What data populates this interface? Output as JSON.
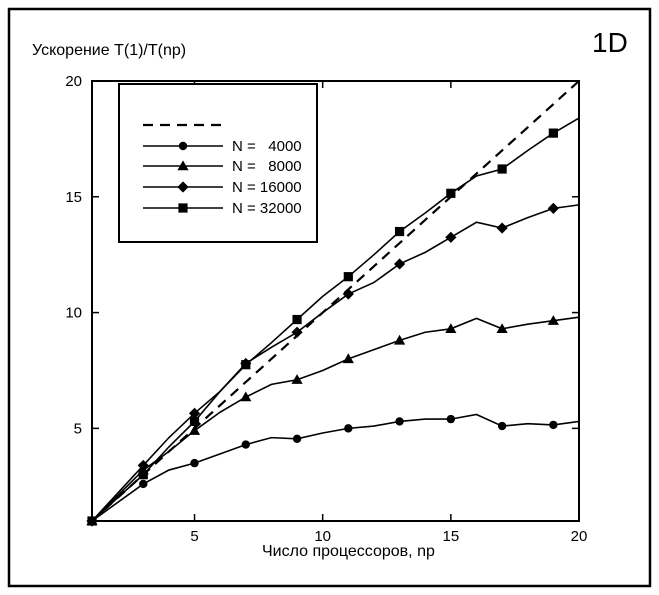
{
  "chart_data": {
    "type": "line",
    "title": "1D",
    "xlabel": "Число процессоров, np",
    "ylabel": "Ускорение T(1)/T(np)",
    "xlim": [
      1,
      20
    ],
    "ylim": [
      1,
      20
    ],
    "xticks": [
      5,
      10,
      15,
      20
    ],
    "yticks": [
      5,
      10,
      15,
      20
    ],
    "grid": false,
    "legend_position": "top-left",
    "ideal": {
      "label": "",
      "x": [
        1,
        20
      ],
      "y": [
        1,
        20
      ]
    },
    "series": [
      {
        "name": "N =   4000",
        "marker": "circle",
        "x": [
          1,
          3,
          4,
          5,
          6,
          7,
          8,
          9,
          10,
          11,
          12,
          13,
          14,
          15,
          16,
          17,
          18,
          19,
          20
        ],
        "y": [
          1,
          2.6,
          3.2,
          3.5,
          3.9,
          4.3,
          4.6,
          4.55,
          4.8,
          5.0,
          5.1,
          5.3,
          5.4,
          5.4,
          5.6,
          5.1,
          5.2,
          5.15,
          5.3
        ],
        "marked_x": [
          1,
          3,
          5,
          7,
          9,
          11,
          13,
          15,
          17,
          19
        ]
      },
      {
        "name": "N =   8000",
        "marker": "triangle",
        "x": [
          1,
          3,
          4,
          5,
          6,
          7,
          8,
          9,
          10,
          11,
          12,
          13,
          14,
          15,
          16,
          17,
          18,
          19,
          20
        ],
        "y": [
          1,
          3.2,
          4.0,
          4.9,
          5.7,
          6.35,
          6.9,
          7.1,
          7.5,
          8.0,
          8.4,
          8.8,
          9.15,
          9.3,
          9.75,
          9.3,
          9.5,
          9.65,
          9.8
        ],
        "marked_x": [
          1,
          3,
          5,
          7,
          9,
          11,
          13,
          15,
          17,
          19
        ]
      },
      {
        "name": "N = 16000",
        "marker": "diamond",
        "x": [
          1,
          3,
          4,
          5,
          6,
          7,
          8,
          9,
          10,
          11,
          12,
          13,
          14,
          15,
          16,
          17,
          18,
          19,
          20
        ],
        "y": [
          1,
          3.4,
          4.6,
          5.65,
          6.6,
          7.8,
          8.5,
          9.15,
          10.0,
          10.8,
          11.3,
          12.1,
          12.6,
          13.25,
          13.9,
          13.65,
          14.1,
          14.5,
          14.65
        ],
        "marked_x": [
          1,
          3,
          5,
          7,
          9,
          11,
          13,
          15,
          17,
          19
        ]
      },
      {
        "name": "N = 32000",
        "marker": "square",
        "x": [
          1,
          3,
          4,
          5,
          6,
          7,
          8,
          9,
          10,
          11,
          12,
          13,
          14,
          15,
          16,
          17,
          18,
          19,
          20
        ],
        "y": [
          1,
          3.0,
          4.2,
          5.3,
          6.6,
          7.75,
          8.7,
          9.7,
          10.7,
          11.55,
          12.5,
          13.5,
          14.3,
          15.15,
          15.9,
          16.2,
          17.0,
          17.75,
          18.4
        ],
        "marked_x": [
          1,
          3,
          5,
          7,
          9,
          11,
          13,
          15,
          17,
          19
        ]
      }
    ]
  }
}
